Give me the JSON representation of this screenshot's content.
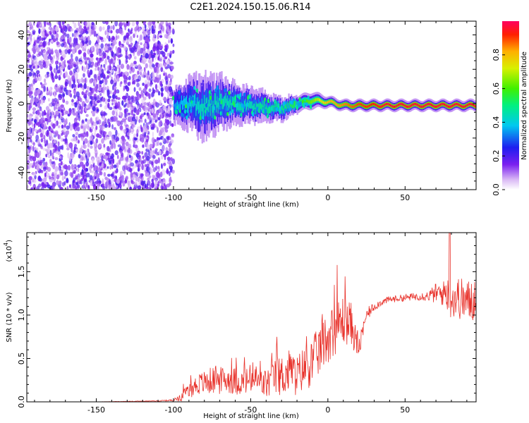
{
  "title": "C2E1.2024.150.15.06.R14",
  "chart_data": [
    {
      "type": "heatmap",
      "title": "C2E1.2024.150.15.06.R14",
      "xlabel": "Height of straight line (km)",
      "ylabel": "Frequency (Hz)",
      "xlim": [
        -195,
        96
      ],
      "ylim": [
        -50,
        48
      ],
      "xticks": [
        -150,
        -100,
        -50,
        0,
        50
      ],
      "yticks": [
        -40,
        -20,
        0,
        20,
        40
      ],
      "noise_region_x": [
        -195,
        -100
      ],
      "signal_band": {
        "x": [
          -100,
          -90,
          -80,
          -70,
          -60,
          -50,
          -40,
          -30,
          -20,
          -10,
          0,
          10,
          20,
          40,
          60,
          80,
          96
        ],
        "center_hz": [
          -1,
          0,
          -2,
          1,
          0,
          -1,
          -2,
          -3,
          0,
          2,
          1,
          -1,
          -1,
          -1,
          -1,
          -1,
          -1
        ],
        "halfwidth_hz": [
          6,
          9,
          11,
          9,
          7,
          6,
          5,
          4,
          3,
          3,
          2,
          2,
          2,
          2,
          2,
          2,
          2
        ],
        "amplitude": [
          0.35,
          0.4,
          0.45,
          0.45,
          0.45,
          0.45,
          0.5,
          0.5,
          0.55,
          0.65,
          0.8,
          0.85,
          0.9,
          0.95,
          0.95,
          0.95,
          0.95
        ]
      },
      "colorbar": {
        "label": "Normalized spectral amplitude",
        "range": [
          0.0,
          1.0
        ],
        "ticks": [
          "0.0",
          "0.2",
          "0.4",
          "0.6",
          "0.8"
        ]
      }
    },
    {
      "type": "line",
      "xlabel": "Height of straight line (km)",
      "ylabel": "SNR (10 * v/v)",
      "scale_note": "(x10",
      "scale_exp": "4",
      "scale_close": ")",
      "xlim": [
        -195,
        96
      ],
      "ylim": [
        0.0,
        1.95
      ],
      "xticks": [
        -150,
        -100,
        -50,
        0,
        50
      ],
      "yticks": [
        "0.0",
        "0.5",
        "1.0",
        "1.5"
      ],
      "color": "#e8312a",
      "series": [
        {
          "x": [
            -195,
            -150,
            -110,
            -100,
            -95,
            -90,
            -85,
            -80,
            -75,
            -70,
            -65,
            -60,
            -55,
            -50,
            -45,
            -40,
            -35,
            -30,
            -25,
            -20,
            -15,
            -10,
            -5,
            0,
            5,
            10,
            15,
            20,
            25,
            30,
            35,
            40,
            50,
            60,
            65,
            70,
            75,
            78,
            80,
            85,
            90,
            95
          ],
          "values": [
            0.0,
            0.0,
            0.01,
            0.02,
            0.06,
            0.12,
            0.2,
            0.22,
            0.25,
            0.24,
            0.26,
            0.24,
            0.22,
            0.26,
            0.22,
            0.2,
            0.28,
            0.3,
            0.35,
            0.3,
            0.4,
            0.45,
            0.62,
            0.75,
            0.85,
            0.95,
            0.9,
            0.6,
            1.0,
            1.1,
            1.15,
            1.18,
            1.2,
            1.22,
            1.22,
            1.25,
            1.25,
            1.3,
            1.2,
            1.2,
            1.15,
            1.2
          ],
          "noise_amp": [
            0.0,
            0.0,
            0.005,
            0.01,
            0.05,
            0.08,
            0.12,
            0.14,
            0.16,
            0.16,
            0.16,
            0.16,
            0.14,
            0.18,
            0.16,
            0.18,
            0.2,
            0.24,
            0.26,
            0.24,
            0.26,
            0.28,
            0.3,
            0.3,
            0.3,
            0.3,
            0.25,
            0.12,
            0.08,
            0.05,
            0.04,
            0.04,
            0.04,
            0.05,
            0.06,
            0.12,
            0.15,
            0.3,
            0.25,
            0.25,
            0.25,
            0.28
          ]
        }
      ]
    }
  ]
}
